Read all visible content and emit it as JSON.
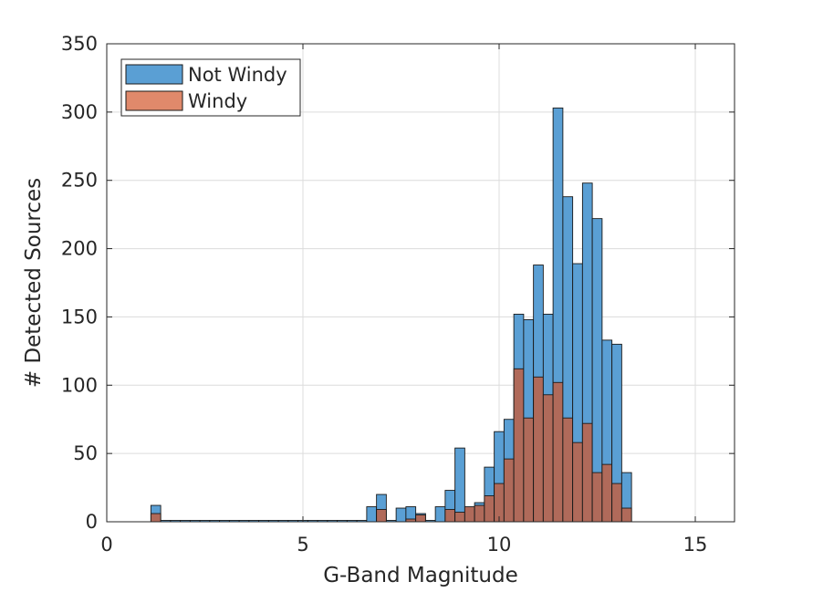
{
  "chart_data": {
    "type": "bar",
    "xlabel": "G-Band Magnitude",
    "ylabel": "# Detected Sources",
    "xlim": [
      0,
      16
    ],
    "ylim": [
      0,
      350
    ],
    "xticks": [
      0,
      5,
      10,
      15
    ],
    "yticks": [
      0,
      50,
      100,
      150,
      200,
      250,
      300,
      350
    ],
    "grid": true,
    "legend_position": "top-left",
    "bin_width": 0.25,
    "x": [
      1.25,
      1.5,
      1.75,
      2.0,
      2.25,
      2.5,
      2.75,
      3.0,
      3.25,
      3.5,
      3.75,
      4.0,
      4.25,
      4.5,
      4.75,
      5.0,
      5.25,
      5.5,
      5.75,
      6.0,
      6.25,
      6.5,
      6.75,
      7.0,
      7.25,
      7.5,
      7.75,
      8.0,
      8.25,
      8.5,
      8.75,
      9.0,
      9.25,
      9.5,
      9.75,
      10.0,
      10.25,
      10.5,
      10.75,
      11.0,
      11.25,
      11.5,
      11.75,
      12.0,
      12.25,
      12.5,
      12.75,
      13.0,
      13.25,
      13.5
    ],
    "series": [
      {
        "name": "Not Windy",
        "color": "#5A9FD4",
        "values": [
          12,
          1,
          1,
          1,
          1,
          1,
          1,
          1,
          1,
          1,
          1,
          1,
          1,
          1,
          1,
          1,
          1,
          1,
          1,
          1,
          1,
          1,
          11,
          20,
          1,
          10,
          11,
          6,
          1,
          11,
          23,
          54,
          6,
          14,
          40,
          66,
          75,
          152,
          148,
          188,
          152,
          303,
          238,
          189,
          248,
          222,
          133,
          130,
          36,
          0
        ]
      },
      {
        "name": "Windy",
        "color": "#E0896B",
        "values": [
          6,
          0,
          0,
          0,
          0,
          0,
          0,
          0,
          0,
          0,
          0,
          0,
          0,
          0,
          0,
          0,
          0,
          0,
          0,
          0,
          0,
          0,
          0,
          9,
          0,
          0,
          2,
          5,
          0,
          0,
          9,
          7,
          11,
          12,
          19,
          28,
          46,
          112,
          76,
          106,
          93,
          102,
          76,
          58,
          72,
          36,
          42,
          28,
          10,
          0
        ]
      }
    ],
    "overlap_color": "#B06A5A"
  }
}
